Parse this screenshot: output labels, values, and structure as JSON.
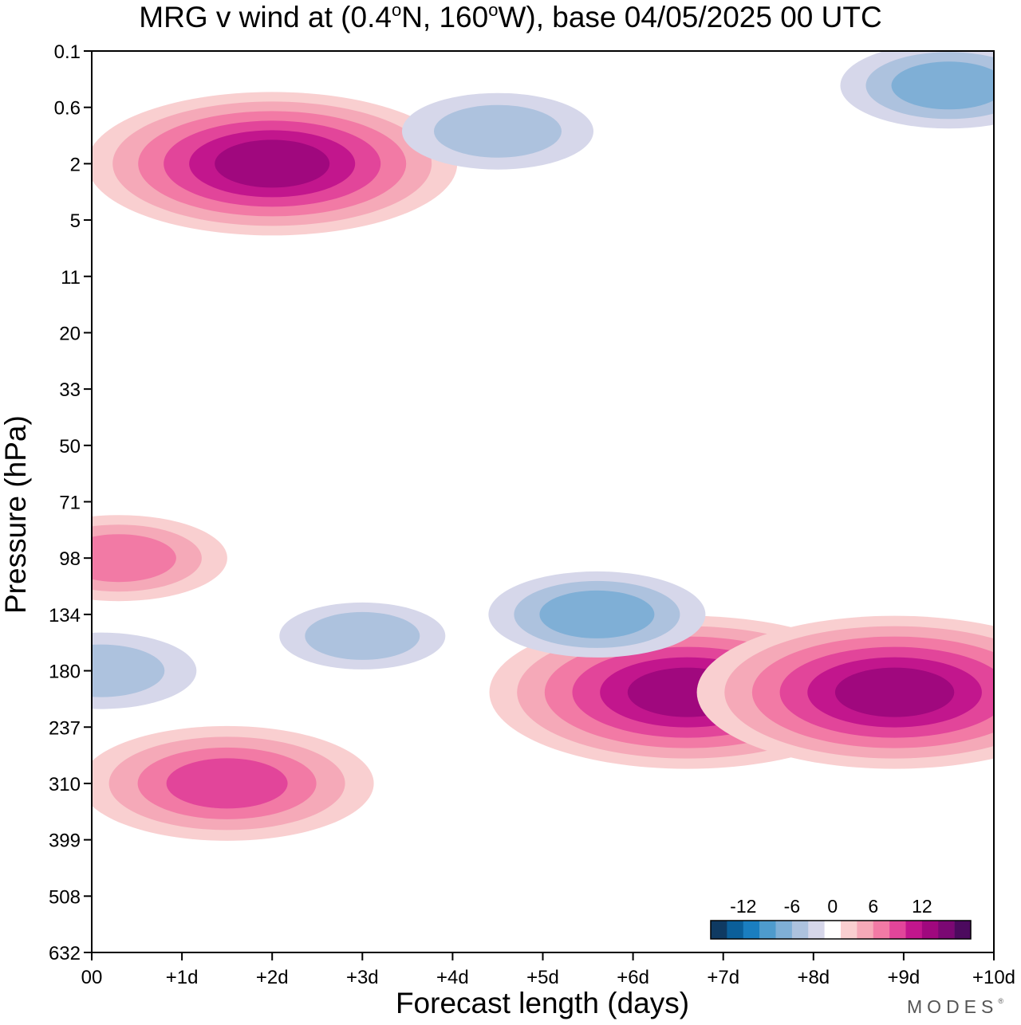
{
  "chart_data": {
    "type": "heatmap",
    "title": "MRG v wind at (0.4°N, 160°W),  base 04/05/2025  00 UTC",
    "title_parts": {
      "prefix": "MRG v wind at (0.4",
      "deg1": "o",
      "mid": "N, 160",
      "deg2": "o",
      "suffix": "W),  base 04/05/2025  00 UTC"
    },
    "xlabel": "Forecast length (days)",
    "ylabel": "Pressure (hPa)",
    "x_ticks": [
      "00",
      "+1d",
      "+2d",
      "+3d",
      "+4d",
      "+5d",
      "+6d",
      "+7d",
      "+8d",
      "+9d",
      "+10d"
    ],
    "xlim_days": [
      0,
      10
    ],
    "y_ticks": [
      "0.1",
      "0.6",
      "2",
      "5",
      "11",
      "20",
      "33",
      "50",
      "71",
      "98",
      "134",
      "180",
      "237",
      "310",
      "399",
      "508",
      "632"
    ],
    "y_order": "top-to-bottom, equally spaced levels",
    "colorbar": {
      "labels": [
        "-12",
        "-6",
        "0",
        "6",
        "12"
      ],
      "label_values": [
        -12,
        -6,
        0,
        6,
        12
      ],
      "bounds": [
        -16,
        -14,
        -12,
        -10,
        -8,
        -6,
        -4,
        -2,
        2,
        4,
        6,
        8,
        10,
        12,
        14,
        16
      ],
      "colors": [
        "#0f3a62",
        "#0b5f9a",
        "#1a7ec0",
        "#4e9bcd",
        "#7fafd6",
        "#adc2de",
        "#d6d7ea",
        "#ffffff",
        "#f9cfd0",
        "#f5a9b8",
        "#f27aa5",
        "#e2459a",
        "#c2168d",
        "#a0087e",
        "#7b0873",
        "#4c0a5e"
      ]
    },
    "features": [
      {
        "x_day": 1.5,
        "p_hpa": 310,
        "v_max": 9,
        "sign": "positive"
      },
      {
        "x_day": 6.6,
        "p_hpa": 200,
        "v_max": 13,
        "sign": "positive"
      },
      {
        "x_day": 8.9,
        "p_hpa": 200,
        "v_max": 13,
        "sign": "positive"
      },
      {
        "x_day": 5.6,
        "p_hpa": 134,
        "v_max": -6,
        "sign": "negative"
      },
      {
        "x_day": 3.0,
        "p_hpa": 150,
        "v_max": -4,
        "sign": "negative"
      },
      {
        "x_day": 0.1,
        "p_hpa": 180,
        "v_max": -5,
        "sign": "negative"
      },
      {
        "x_day": 2.0,
        "p_hpa": 2,
        "v_max": 12,
        "sign": "positive"
      },
      {
        "x_day": 9.5,
        "p_hpa": 0.3,
        "v_max": -6,
        "sign": "negative"
      },
      {
        "x_day": 4.5,
        "p_hpa": 1.0,
        "v_max": -5,
        "sign": "negative"
      },
      {
        "x_day": 0.3,
        "p_hpa": 98,
        "v_max": 6,
        "sign": "positive"
      }
    ]
  },
  "brand": {
    "name": "MODES",
    "mark": "®"
  }
}
